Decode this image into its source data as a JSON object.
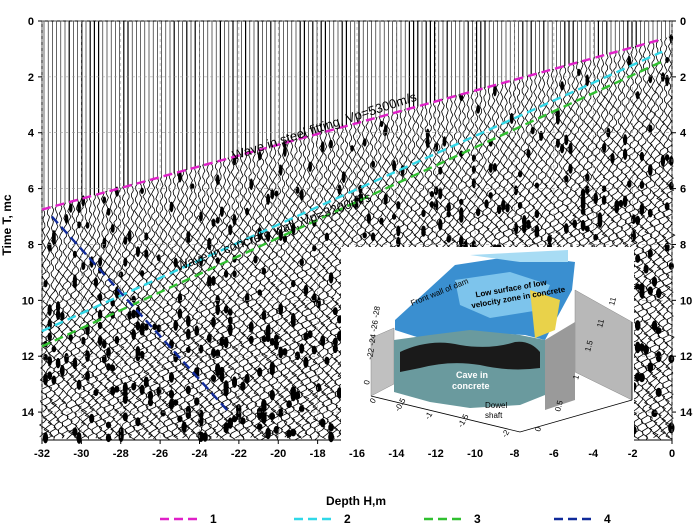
{
  "chart_data": {
    "type": "line",
    "xlabel": "Depth H,m",
    "ylabel": "Time T, mc",
    "xlim": [
      -32,
      0
    ],
    "ylim": [
      15,
      0
    ],
    "x_ticks": [
      -32,
      -30,
      -28,
      -26,
      -24,
      -22,
      -20,
      -18,
      -16,
      -14,
      -12,
      -10,
      -8,
      -6,
      -4,
      -2,
      0
    ],
    "y_ticks": [
      0,
      2,
      4,
      6,
      8,
      10,
      12,
      14
    ],
    "grid": true,
    "legend_position": "bottom",
    "series": [
      {
        "name": "1",
        "color": "#e020c8",
        "x": [
          -32,
          -0.5
        ],
        "y": [
          6.75,
          0.65
        ]
      },
      {
        "name": "2",
        "color": "#30d8e8",
        "x": [
          -32,
          -0.5
        ],
        "y": [
          11.1,
          1.1
        ]
      },
      {
        "name": "3",
        "color": "#30c030",
        "x": [
          -32,
          -0.5
        ],
        "y": [
          11.65,
          1.45
        ]
      },
      {
        "name": "4",
        "color": "#102a9a",
        "x": [
          -31.5,
          -22.5
        ],
        "y": [
          7.0,
          14.0
        ]
      }
    ],
    "annotations": [
      {
        "text": "Wave in steel fitting, Vp=5300m/s"
      },
      {
        "text": "Wave in concrete wall, Vp=3200m/s"
      }
    ],
    "inset": {
      "labels": {
        "front_wall": "Front wall of dam",
        "low_surface": "Low surface of low velocity zone in concrete",
        "cave": "Cave in concrete",
        "dowel": "Dowel shaft"
      },
      "left_ticks": [
        "-28",
        "-26",
        "-24",
        "-22",
        "0"
      ],
      "front_ticks": [
        "0",
        "-0.5",
        "-1",
        "-1.5",
        "-2"
      ],
      "side_ticks": [
        "0",
        "0.5",
        "1",
        "1.5",
        "11",
        "11"
      ]
    }
  }
}
